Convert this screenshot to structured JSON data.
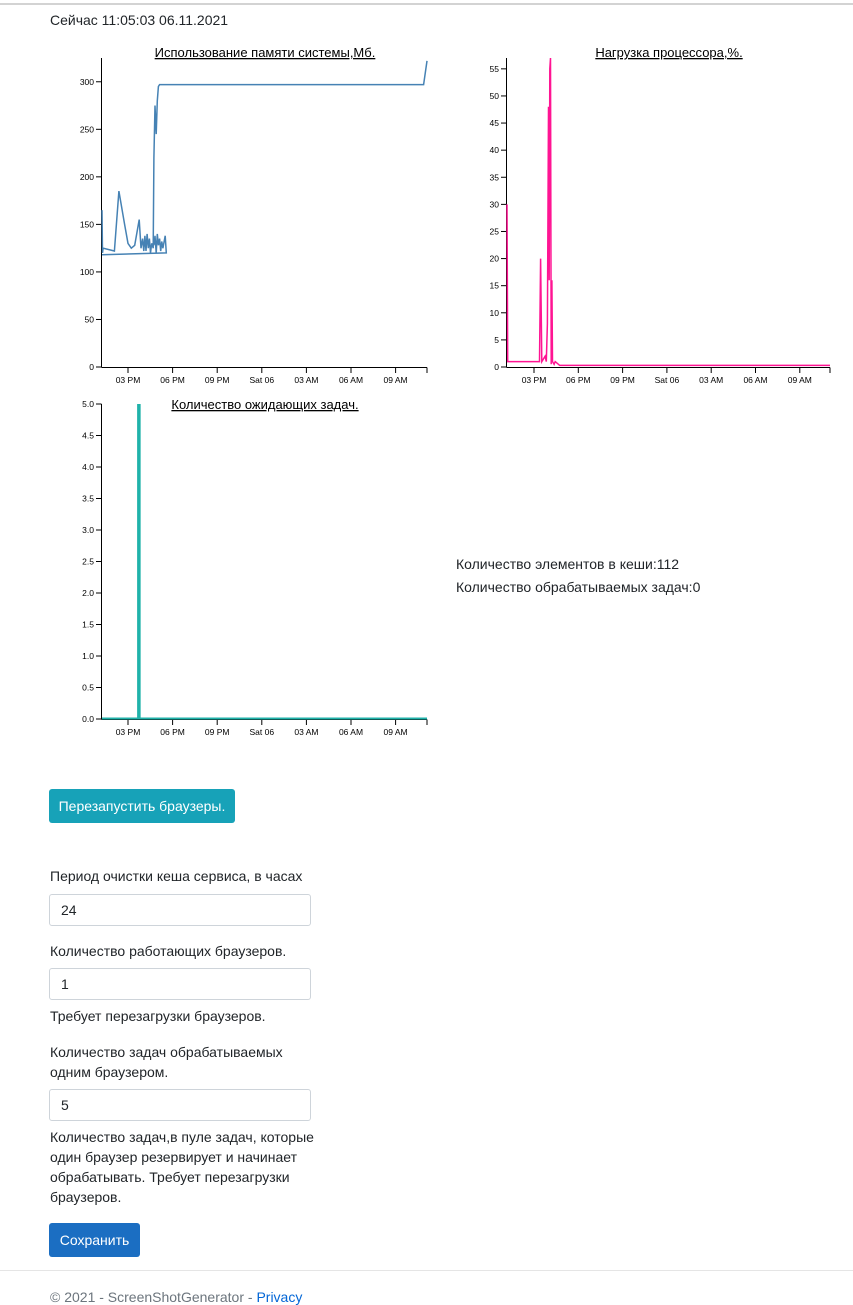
{
  "header": {
    "clock": "Сейчас 11:05:03 06.11.2021"
  },
  "charts": [
    {
      "id": "memory",
      "chart_data": {
        "type": "line",
        "title": "Использование памяти системы,Мб.",
        "color": "#4682b4",
        "x_ticks": [
          "03 PM",
          "06 PM",
          "09 PM",
          "Sat 06",
          "03 AM",
          "06 AM",
          "09 AM"
        ],
        "x_range": [
          "2021-11-05T11:05",
          "2021-11-06T11:05"
        ],
        "y_ticks": [
          "0",
          "50",
          "100",
          "150",
          "200",
          "250",
          "300"
        ],
        "ylim": [
          0,
          325
        ],
        "series": [
          {
            "values": [
              [
                "2021-11-05T11:05",
                165
              ],
              [
                "2021-11-05T11:07",
                120
              ],
              [
                "2021-11-05T11:10",
                125
              ],
              [
                "2021-11-05T12:00",
                122
              ],
              [
                "2021-11-05T12:20",
                185
              ],
              [
                "2021-11-05T12:45",
                150
              ],
              [
                "2021-11-05T13:00",
                130
              ],
              [
                "2021-11-05T13:15",
                125
              ],
              [
                "2021-11-05T13:30",
                128
              ],
              [
                "2021-11-05T13:50",
                155
              ],
              [
                "2021-11-05T13:58",
                125
              ],
              [
                "2021-11-05T14:05",
                135
              ],
              [
                "2021-11-05T14:10",
                122
              ],
              [
                "2021-11-05T14:15",
                138
              ],
              [
                "2021-11-05T14:20",
                122
              ],
              [
                "2021-11-05T14:25",
                140
              ],
              [
                "2021-11-05T14:30",
                125
              ],
              [
                "2021-11-05T14:35",
                135
              ],
              [
                "2021-11-05T14:40",
                120
              ],
              [
                "2021-11-05T14:45",
                130
              ],
              [
                "2021-11-05T14:52",
                125
              ],
              [
                "2021-11-05T14:55",
                220
              ],
              [
                "2021-11-05T15:00",
                275
              ],
              [
                "2021-11-05T15:05",
                245
              ],
              [
                "2021-11-05T15:10",
                280
              ],
              [
                "2021-11-05T15:15",
                295
              ],
              [
                "2021-11-05T15:20",
                297
              ],
              [
                "2021-11-06T10:50",
                297
              ],
              [
                "2021-11-06T11:05",
                322
              ]
            ]
          },
          {
            "values": [
              [
                "2021-11-05T14:55",
                128
              ],
              [
                "2021-11-05T15:00",
                138
              ],
              [
                "2021-11-05T15:05",
                120
              ],
              [
                "2021-11-05T15:10",
                140
              ],
              [
                "2021-11-05T15:15",
                128
              ],
              [
                "2021-11-05T15:20",
                135
              ],
              [
                "2021-11-05T15:25",
                122
              ],
              [
                "2021-11-05T15:30",
                132
              ],
              [
                "2021-11-05T15:35",
                125
              ],
              [
                "2021-11-05T15:45",
                138
              ],
              [
                "2021-11-05T15:50",
                120
              ],
              [
                "2021-11-05T11:05",
                118
              ]
            ]
          }
        ]
      }
    },
    {
      "id": "cpu",
      "chart_data": {
        "type": "line",
        "title": "Нагрузка процессора,%.",
        "color": "#ff1493",
        "x_ticks": [
          "03 PM",
          "06 PM",
          "09 PM",
          "Sat 06",
          "03 AM",
          "06 AM",
          "09 AM"
        ],
        "x_range": [
          "2021-11-05T11:05",
          "2021-11-06T11:05"
        ],
        "y_ticks": [
          "0",
          "5",
          "10",
          "15",
          "20",
          "25",
          "30",
          "35",
          "40",
          "45",
          "50",
          "55"
        ],
        "ylim": [
          0,
          57
        ],
        "series": [
          {
            "values": [
              [
                "2021-11-05T11:05",
                30
              ],
              [
                "2021-11-05T11:08",
                1
              ],
              [
                "2021-11-05T13:30",
                1
              ],
              [
                "2021-11-05T13:35",
                20
              ],
              [
                "2021-11-05T13:40",
                1
              ],
              [
                "2021-11-05T13:55",
                2
              ],
              [
                "2021-11-05T14:00",
                1
              ],
              [
                "2021-11-05T14:05",
                8
              ],
              [
                "2021-11-05T14:10",
                48
              ],
              [
                "2021-11-05T14:13",
                16
              ],
              [
                "2021-11-05T14:16",
                55
              ],
              [
                "2021-11-05T14:19",
                57
              ],
              [
                "2021-11-05T14:22",
                0.5
              ],
              [
                "2021-11-05T14:25",
                16
              ],
              [
                "2021-11-05T14:28",
                1
              ],
              [
                "2021-11-05T14:35",
                0.5
              ],
              [
                "2021-11-05T14:40",
                1
              ],
              [
                "2021-11-05T15:00",
                0.3
              ],
              [
                "2021-11-06T11:05",
                0.3
              ]
            ]
          }
        ]
      }
    },
    {
      "id": "tasks",
      "chart_data": {
        "type": "bar",
        "title": "Количество ожидающих задач.",
        "color": "#20b2aa",
        "x_ticks": [
          "03 PM",
          "06 PM",
          "09 PM",
          "Sat 06",
          "03 AM",
          "06 AM",
          "09 AM"
        ],
        "x_range": [
          "2021-11-05T11:05",
          "2021-11-06T11:05"
        ],
        "y_ticks": [
          "0.0",
          "0.5",
          "1.0",
          "1.5",
          "2.0",
          "2.5",
          "3.0",
          "3.5",
          "4.0",
          "4.5",
          "5.0"
        ],
        "ylim": [
          0,
          5
        ],
        "series": [
          {
            "values": [
              [
                "2021-11-05T13:45",
                5
              ],
              [
                "2021-11-05T13:48",
                5
              ],
              [
                "2021-11-05T13:51",
                5
              ],
              [
                "2021-11-05T13:54",
                5
              ]
            ]
          }
        ]
      }
    }
  ],
  "stats": {
    "cache_items": "Количество элементов в кеши:112",
    "tasks_processing": "Количество обрабатываемых задач:0"
  },
  "actions": {
    "restart_label": "Перезапустить браузеры."
  },
  "settings": {
    "cache_period_label": "Период очистки кеша сервиса, в часах",
    "cache_period_value": "24",
    "browsers_label": "Количество работающих браузеров.",
    "browsers_value": "1",
    "browsers_hint": "Требует перезагрузки браузеров.",
    "tasks_per_browser_label": "Количество задач обрабатываемых одним браузером.",
    "tasks_per_browser_value": "5",
    "tasks_hint": "Количество задач,в пуле задач, которые один браузер резервирует и начинает обрабатывать. Требует перезагрузки браузеров.",
    "save_label": "Сохранить"
  },
  "footer": {
    "copyright": "© 2021 - ScreenShotGenerator - ",
    "privacy": "Privacy"
  }
}
